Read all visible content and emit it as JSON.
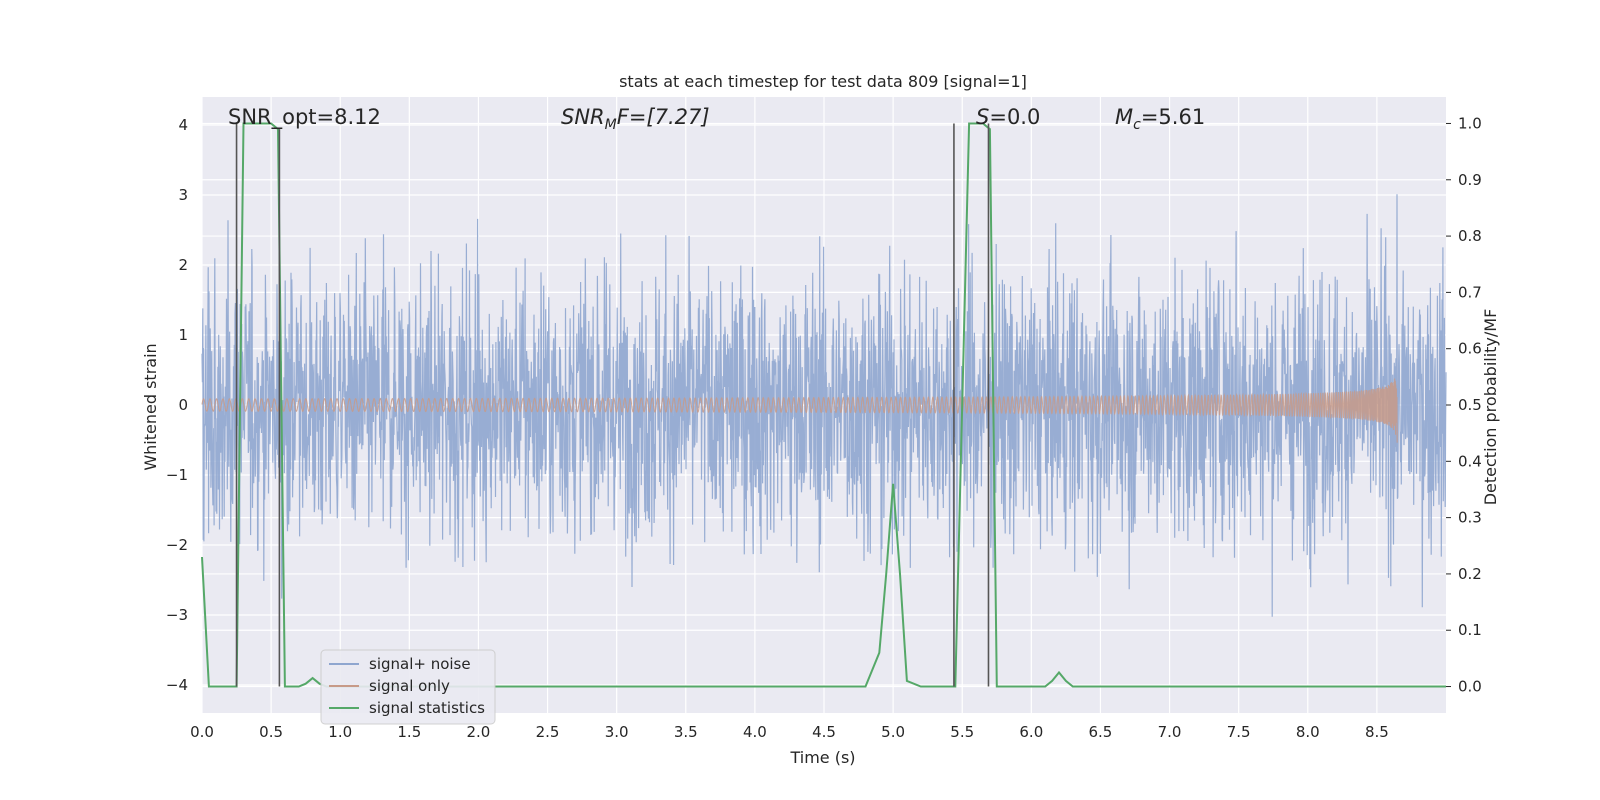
{
  "chart_data": {
    "type": "line",
    "title": "stats at each timestep for test data 809 [signal=1]",
    "xlabel": "Time (s)",
    "ylabel_left": "Whitened strain",
    "ylabel_right": "Detection probability/MF",
    "xlim": [
      0,
      9.0
    ],
    "ylim_left": [
      -4.4,
      4.4
    ],
    "ylim_right": [
      -0.047,
      1.047
    ],
    "xticks": [
      "0.0",
      "0.5",
      "1.0",
      "1.5",
      "2.0",
      "2.5",
      "3.0",
      "3.5",
      "4.0",
      "4.5",
      "5.0",
      "5.5",
      "6.0",
      "6.5",
      "7.0",
      "7.5",
      "8.0",
      "8.5"
    ],
    "xtick_values": [
      0,
      0.5,
      1.0,
      1.5,
      2.0,
      2.5,
      3.0,
      3.5,
      4.0,
      4.5,
      5.0,
      5.5,
      6.0,
      6.5,
      7.0,
      7.5,
      8.0,
      8.5
    ],
    "yticks_left": [
      "−4",
      "−3",
      "−2",
      "−1",
      "0",
      "1",
      "2",
      "3",
      "4"
    ],
    "ytick_values_left": [
      -4,
      -3,
      -2,
      -1,
      0,
      1,
      2,
      3,
      4
    ],
    "yticks_right": [
      "0.0",
      "0.1",
      "0.2",
      "0.3",
      "0.4",
      "0.5",
      "0.6",
      "0.7",
      "0.8",
      "0.9",
      "1.0"
    ],
    "ytick_values_right": [
      0,
      0.1,
      0.2,
      0.3,
      0.4,
      0.5,
      0.6,
      0.7,
      0.8,
      0.9,
      1.0
    ],
    "annotations": {
      "snr_opt": "SNR_opt=8.12",
      "snr_mf_base": "SNR",
      "snr_mf_sub": "M",
      "snr_mf_rest": "F=[7.27]",
      "s_sym": "S",
      "s_rest": "=0.0",
      "mc_sym": "M",
      "mc_sub": "c",
      "mc_rest": "=5.61"
    },
    "series": [
      {
        "name": "signal+ noise",
        "color": "#8fa6cf",
        "kind": "noise",
        "std": 1.0,
        "x_range": [
          0,
          9.0
        ]
      },
      {
        "name": "signal only",
        "color": "#c79a88",
        "kind": "chirp",
        "t_merger": 8.65,
        "peak_amplitude": 0.6
      },
      {
        "name": "signal statistics",
        "color": "#55a868",
        "axis": "right",
        "x": [
          0,
          0.05,
          0.1,
          0.15,
          0.2,
          0.25,
          0.3,
          0.35,
          0.4,
          0.45,
          0.5,
          0.55,
          0.6,
          0.65,
          0.7,
          0.75,
          0.8,
          0.85,
          0.9,
          1.0,
          2.0,
          3.0,
          4.0,
          4.8,
          4.9,
          4.95,
          5.0,
          5.05,
          5.1,
          5.2,
          5.3,
          5.4,
          5.45,
          5.5,
          5.55,
          5.6,
          5.65,
          5.7,
          5.75,
          5.8,
          5.9,
          6.0,
          6.1,
          6.15,
          6.2,
          6.25,
          6.3,
          6.5,
          7.0,
          8.0,
          9.0
        ],
        "y": [
          0.23,
          0.0,
          0.0,
          0.0,
          0.0,
          0.0,
          1.0,
          1.0,
          1.0,
          1.0,
          1.0,
          0.99,
          0.0,
          0.0,
          0.0,
          0.005,
          0.015,
          0.005,
          0.0,
          0.0,
          0.0,
          0.0,
          0.0,
          0.0,
          0.06,
          0.2,
          0.36,
          0.2,
          0.01,
          0.0,
          0.0,
          0.0,
          0.0,
          0.5,
          1.0,
          1.0,
          1.0,
          0.99,
          0.0,
          0.0,
          0.0,
          0.0,
          0.0,
          0.01,
          0.025,
          0.01,
          0.0,
          0.0,
          0.0,
          0.0,
          0.0
        ]
      },
      {
        "name": "markers",
        "color": "#555555",
        "kind": "vlines",
        "x": [
          0.25,
          0.56,
          5.44,
          5.69
        ],
        "y_top": [
          1.0,
          0.99,
          1.0,
          1.0
        ],
        "y_bottom": [
          0.0,
          0.0,
          0.0,
          0.0
        ]
      }
    ],
    "legend": {
      "placement": "lower-left",
      "entries": [
        "signal+ noise",
        "signal only",
        "signal statistics"
      ]
    }
  }
}
